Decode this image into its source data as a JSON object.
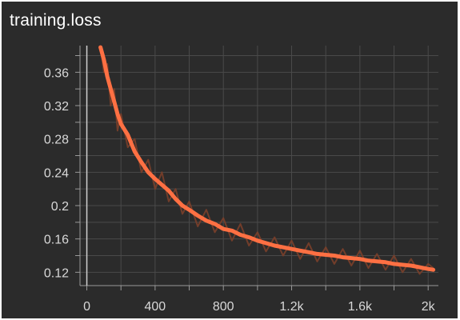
{
  "panel": {
    "title": "training.loss"
  },
  "colors": {
    "background": "#2b2b2b",
    "grid": "#4a4a4a",
    "axis": "#9a9a9a",
    "text": "#d8d8d8",
    "smoothed_line": "#ff7043",
    "raw_line": "#7a3f2a"
  },
  "chart_data": {
    "type": "line",
    "title": "training.loss",
    "xlabel": "",
    "ylabel": "",
    "xlim": [
      -40,
      2060
    ],
    "ylim": [
      0.104,
      0.392
    ],
    "x_ticks": [
      0,
      400,
      800,
      1200,
      1600,
      2000
    ],
    "x_tick_labels": [
      "0",
      "400",
      "800",
      "1.2k",
      "1.6k",
      "2k"
    ],
    "y_ticks": [
      0.12,
      0.16,
      0.2,
      0.24,
      0.28,
      0.32,
      0.36
    ],
    "y_tick_labels": [
      "0.12",
      "0.16",
      "0.2",
      "0.24",
      "0.28",
      "0.32",
      "0.36"
    ],
    "grid": true,
    "legend": "none",
    "series": [
      {
        "style": "smoothed",
        "x": [
          80,
          100,
          120,
          140,
          160,
          180,
          200,
          240,
          280,
          320,
          360,
          400,
          440,
          480,
          520,
          560,
          600,
          650,
          700,
          750,
          800,
          850,
          900,
          950,
          1000,
          1050,
          1100,
          1150,
          1200,
          1250,
          1300,
          1350,
          1400,
          1450,
          1500,
          1550,
          1600,
          1650,
          1700,
          1750,
          1800,
          1850,
          1900,
          1950,
          2000,
          2030
        ],
        "y": [
          0.39,
          0.375,
          0.355,
          0.34,
          0.325,
          0.31,
          0.298,
          0.285,
          0.265,
          0.252,
          0.24,
          0.232,
          0.225,
          0.218,
          0.208,
          0.2,
          0.195,
          0.188,
          0.182,
          0.178,
          0.172,
          0.17,
          0.165,
          0.162,
          0.158,
          0.155,
          0.152,
          0.15,
          0.148,
          0.146,
          0.144,
          0.142,
          0.141,
          0.14,
          0.138,
          0.137,
          0.136,
          0.134,
          0.133,
          0.132,
          0.13,
          0.129,
          0.128,
          0.126,
          0.124,
          0.123
        ]
      },
      {
        "style": "raw",
        "x": [
          80,
          100,
          120,
          140,
          160,
          180,
          200,
          240,
          280,
          320,
          360,
          400,
          440,
          480,
          520,
          560,
          600,
          650,
          700,
          750,
          800,
          850,
          900,
          950,
          1000,
          1050,
          1100,
          1150,
          1200,
          1250,
          1300,
          1350,
          1400,
          1450,
          1500,
          1550,
          1600,
          1650,
          1700,
          1750,
          1800,
          1850,
          1900,
          1950,
          2000,
          2030
        ],
        "y": [
          0.39,
          0.36,
          0.37,
          0.32,
          0.34,
          0.29,
          0.31,
          0.27,
          0.28,
          0.24,
          0.255,
          0.22,
          0.24,
          0.205,
          0.22,
          0.19,
          0.205,
          0.175,
          0.195,
          0.168,
          0.185,
          0.158,
          0.178,
          0.152,
          0.168,
          0.145,
          0.162,
          0.14,
          0.158,
          0.136,
          0.155,
          0.133,
          0.15,
          0.13,
          0.148,
          0.128,
          0.146,
          0.125,
          0.142,
          0.123,
          0.14,
          0.12,
          0.136,
          0.118,
          0.13,
          0.125
        ]
      }
    ]
  }
}
